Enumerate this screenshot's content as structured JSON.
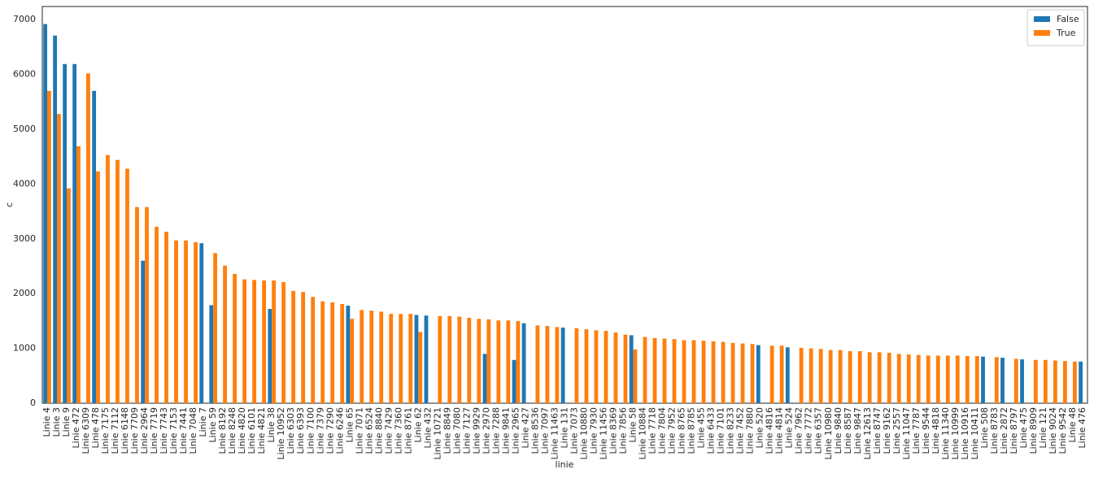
{
  "chart_data": {
    "type": "bar",
    "xlabel": "linie",
    "ylabel": "c",
    "categories": [
      "Linie 4",
      "Linie 3",
      "Linie 9",
      "Linie 472",
      "Linie 6309",
      "Linie 478",
      "Linie 7175",
      "Linie 7112",
      "Linie 6148",
      "Linie 7709",
      "Linie 2964",
      "Linie 7719",
      "Linie 7743",
      "Linie 7153",
      "Linie 7441",
      "Linie 7048",
      "Linie 7",
      "Linie 59",
      "Linie 8192",
      "Linie 8248",
      "Linie 4820",
      "Linie 6101",
      "Linie 4821",
      "Linie 38",
      "Linie 10952",
      "Linie 6303",
      "Linie 6393",
      "Linie 7100",
      "Linie 7379",
      "Linie 7290",
      "Linie 6246",
      "Linie 65",
      "Linie 7071",
      "Linie 6524",
      "Linie 8840",
      "Linie 7429",
      "Linie 7360",
      "Linie 8761",
      "Linie 62",
      "Linie 432",
      "Linie 10721",
      "Linie 8849",
      "Linie 7080",
      "Linie 7127",
      "Linie 9929",
      "Linie 2970",
      "Linie 7288",
      "Linie 9841",
      "Linie 2965",
      "Linie 427",
      "Linie 8536",
      "Linie 7097",
      "Linie 11463",
      "Linie 131",
      "Linie 7073",
      "Linie 10880",
      "Linie 7930",
      "Linie 11456",
      "Linie 8369",
      "Linie 7856",
      "Linie 58",
      "Linie 10884",
      "Linie 7718",
      "Linie 7804",
      "Linie 7952",
      "Linie 8765",
      "Linie 8785",
      "Linie 455",
      "Linie 6433",
      "Linie 7101",
      "Linie 8233",
      "Linie 7452",
      "Linie 7880",
      "Linie 520",
      "Linie 4816",
      "Linie 4814",
      "Linie 524",
      "Linie 7962",
      "Linie 7772",
      "Linie 6357",
      "Linie 10980",
      "Linie 9840",
      "Linie 8587",
      "Linie 9847",
      "Linie 12613",
      "Linie 8747",
      "Linie 9162",
      "Linie 2557",
      "Linie 11047",
      "Linie 7787",
      "Linie 9544",
      "Linie 4818",
      "Linie 11340",
      "Linie 10999",
      "Linie 10916",
      "Linie 10411",
      "Linie 508",
      "Linie 8783",
      "Linie 2872",
      "Linie 8797",
      "Linie 475",
      "Linie 8909",
      "Linie 121",
      "Linie 9024",
      "Linie 9542",
      "Linie 48",
      "Linie 476"
    ],
    "series": [
      {
        "name": "False",
        "color": "#1f77b4",
        "values": [
          6920,
          6710,
          6190,
          6190,
          null,
          5700,
          null,
          null,
          null,
          null,
          2600,
          null,
          null,
          null,
          null,
          null,
          2920,
          1790,
          null,
          null,
          null,
          null,
          null,
          1720,
          null,
          null,
          null,
          null,
          null,
          null,
          null,
          1780,
          null,
          null,
          null,
          null,
          null,
          null,
          1610,
          1600,
          null,
          null,
          null,
          null,
          null,
          900,
          null,
          null,
          790,
          1460,
          null,
          null,
          null,
          1380,
          null,
          null,
          null,
          null,
          null,
          null,
          1240,
          null,
          null,
          null,
          null,
          null,
          null,
          null,
          null,
          null,
          null,
          null,
          null,
          1060,
          null,
          null,
          1020,
          null,
          null,
          null,
          null,
          null,
          null,
          null,
          null,
          null,
          null,
          null,
          null,
          null,
          null,
          null,
          null,
          null,
          null,
          null,
          850,
          null,
          830,
          null,
          800,
          null,
          null,
          null,
          null,
          null,
          760
        ]
      },
      {
        "name": "True",
        "color": "#ff7f0e",
        "values": [
          5700,
          5280,
          3920,
          4690,
          6020,
          4230,
          4530,
          4440,
          4280,
          3580,
          3580,
          3220,
          3130,
          2970,
          2970,
          2940,
          null,
          2740,
          2510,
          2360,
          2260,
          2250,
          2240,
          2240,
          2210,
          2050,
          2030,
          1940,
          1860,
          1840,
          1810,
          1540,
          1700,
          1690,
          1670,
          1630,
          1630,
          1630,
          1300,
          null,
          1590,
          1590,
          1580,
          1560,
          1540,
          1530,
          1510,
          1510,
          1500,
          null,
          1420,
          1410,
          1390,
          null,
          1370,
          1350,
          1330,
          1320,
          1290,
          1250,
          980,
          1210,
          1190,
          1180,
          1170,
          1150,
          1150,
          1140,
          1130,
          1120,
          1100,
          1090,
          1080,
          null,
          1050,
          1050,
          null,
          1010,
          1000,
          990,
          970,
          970,
          950,
          950,
          930,
          930,
          920,
          900,
          890,
          880,
          870,
          870,
          870,
          870,
          860,
          860,
          null,
          840,
          null,
          810,
          null,
          790,
          790,
          780,
          770,
          760,
          null
        ]
      }
    ],
    "ylim": [
      0,
      7240
    ],
    "yticks": [
      0,
      1000,
      2000,
      3000,
      4000,
      5000,
      6000,
      7000
    ],
    "grid": false,
    "legend": "upper right"
  }
}
